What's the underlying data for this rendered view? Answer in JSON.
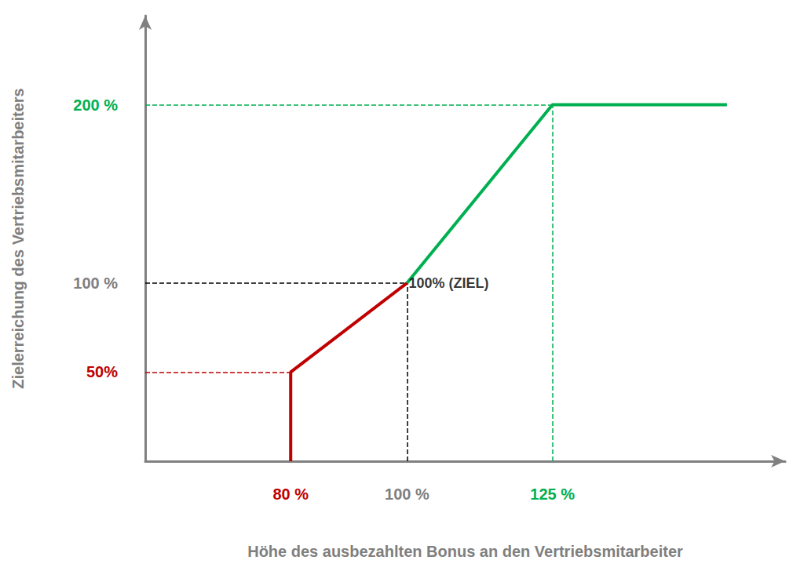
{
  "chart_data": {
    "type": "line",
    "x_label": "Höhe des ausbezahlten Bonus an den Vertriebsmitarbeiter",
    "y_label": "Zielerreichung des Vertriebsmitarbeiters",
    "series": [
      {
        "color": "#c00000",
        "x": [
          80,
          80,
          100
        ],
        "values": [
          0,
          50,
          100
        ]
      },
      {
        "color": "#00b050",
        "x": [
          100,
          125,
          155
        ],
        "values": [
          100,
          200,
          200
        ]
      }
    ],
    "xlim": [
      55,
      165
    ],
    "xticks": [
      {
        "value": 80,
        "label": "80 %"
      },
      {
        "value": 100,
        "label": "100 %"
      },
      {
        "value": 125,
        "label": "125 %"
      }
    ],
    "ylim": [
      0,
      250
    ],
    "yticks": [
      {
        "value": 50,
        "label": "50%"
      },
      {
        "value": 100,
        "label": "100 %"
      },
      {
        "value": 200,
        "label": "200 %"
      }
    ],
    "annotations": [
      {
        "text": "100% (ZIEL)",
        "x": 100,
        "y": 100
      }
    ],
    "grid": false
  }
}
